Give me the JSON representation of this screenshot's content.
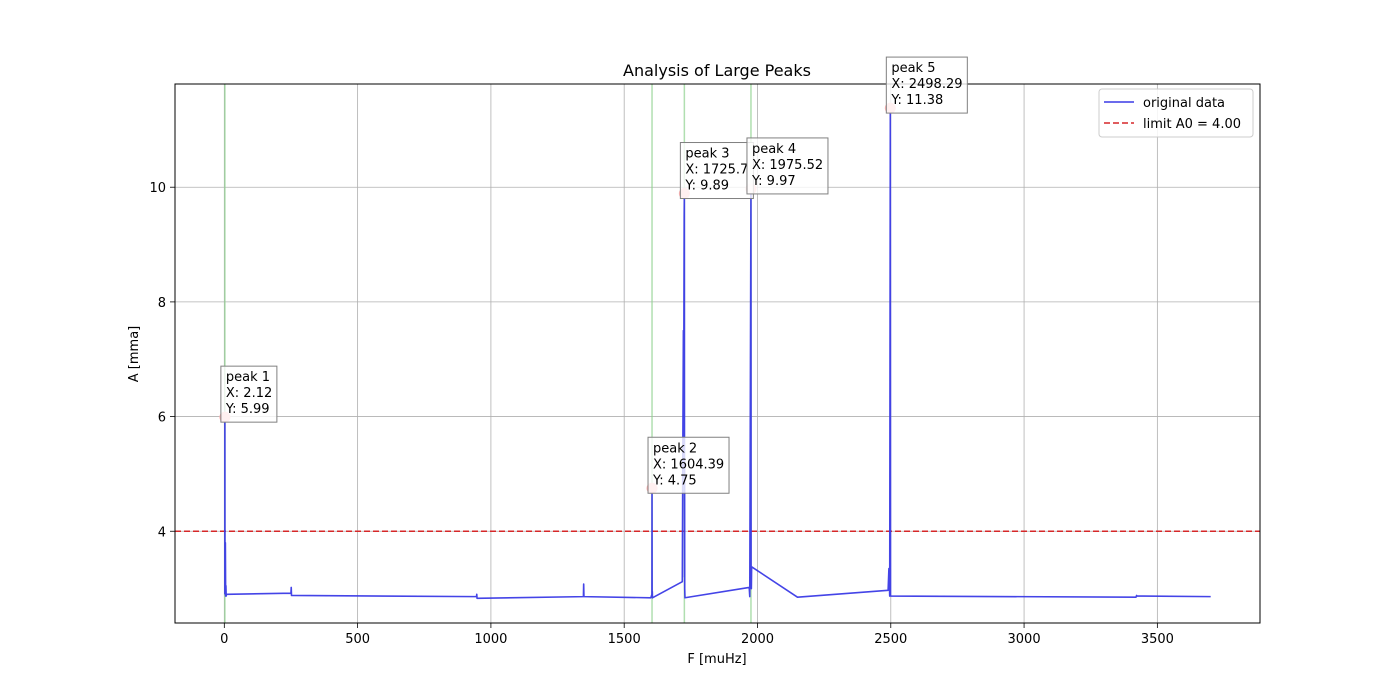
{
  "chart_data": {
    "type": "line",
    "title": "Analysis of Large Peaks",
    "xlabel": "F [muHz]",
    "ylabel": "A [mma]",
    "xlim": [
      -185,
      3885
    ],
    "ylim": [
      2.4,
      11.8
    ],
    "xticks": [
      0,
      500,
      1000,
      1500,
      2000,
      2500,
      3000,
      3500
    ],
    "yticks": [
      4,
      6,
      8,
      10
    ],
    "grid": true,
    "legend_position": "top-right",
    "series": [
      {
        "name": "original data",
        "color": "#3a3ae6",
        "x": [
          2,
          2.12,
          2.5,
          3,
          4,
          5,
          6,
          7,
          8,
          10,
          250,
          251,
          252,
          253,
          946,
          947,
          948,
          1347,
          1348,
          1349,
          1600,
          1604,
          1604.39,
          1604.8,
          1605.5,
          1606,
          1718,
          1720,
          1722,
          1723,
          1725,
          1725.7,
          1726.2,
          1726.6,
          1727,
          1728,
          1969,
          1971,
          1975.52,
          1976,
          1977,
          1978,
          2150,
          2490,
          2493,
          2496,
          2498.29,
          2499,
          2500,
          3420,
          3422,
          3423,
          3700
        ],
        "y": [
          2.9,
          5.99,
          2.95,
          2.95,
          3.8,
          2.87,
          3.05,
          2.87,
          2.9,
          2.9,
          2.92,
          3.02,
          2.88,
          2.88,
          2.86,
          2.9,
          2.83,
          2.86,
          3.08,
          2.86,
          2.84,
          2.9,
          4.75,
          2.95,
          2.95,
          2.84,
          3.12,
          5.5,
          7.5,
          6.0,
          9.5,
          9.89,
          3.2,
          5.2,
          3.0,
          2.84,
          3.02,
          2.86,
          9.97,
          3.4,
          3.0,
          3.38,
          2.85,
          2.97,
          3.35,
          2.87,
          11.38,
          2.87,
          2.87,
          2.85,
          2.88,
          2.87,
          2.86
        ]
      },
      {
        "name": "limit A0 = 4.00",
        "color": "#d62728",
        "style": "dashed",
        "y_constant": 4.0
      }
    ],
    "vertical_markers": [
      2.12,
      1604.39,
      1725.7,
      1975.52
    ],
    "peaks": [
      {
        "label": "peak 1",
        "x_text": "X: 2.12",
        "y_text": "Y: 5.99",
        "x": 2.12,
        "y": 5.99
      },
      {
        "label": "peak 2",
        "x_text": "X: 1604.39",
        "y_text": "Y: 4.75",
        "x": 1604.39,
        "y": 4.75
      },
      {
        "label": "peak 3",
        "x_text": "X: 1725.7",
        "y_text": "Y: 9.89",
        "x": 1725.7,
        "y": 9.89
      },
      {
        "label": "peak 4",
        "x_text": "X: 1975.52",
        "y_text": "Y: 9.97",
        "x": 1975.52,
        "y": 9.97
      },
      {
        "label": "peak 5",
        "x_text": "X: 2498.29",
        "y_text": "Y: 11.38",
        "x": 2498.29,
        "y": 11.38
      }
    ],
    "peak_marker_color": "#ffb3b3",
    "marker_line_color": "#8fd18f"
  }
}
